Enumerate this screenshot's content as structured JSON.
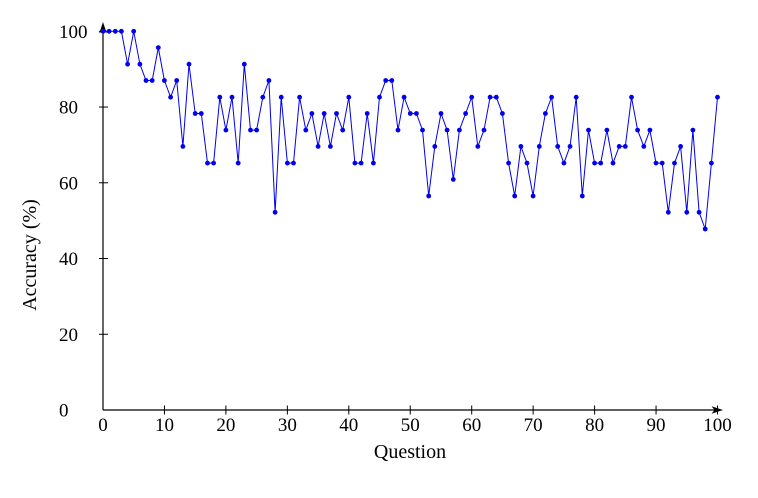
{
  "chart_data": {
    "type": "line",
    "title": "",
    "xlabel": "Question",
    "ylabel": "Accuracy (%)",
    "xlim": [
      0,
      100
    ],
    "ylim": [
      0,
      100
    ],
    "x_ticks": [
      0,
      10,
      20,
      30,
      40,
      50,
      60,
      70,
      80,
      90,
      100
    ],
    "y_ticks": [
      0,
      20,
      40,
      60,
      80,
      100
    ],
    "grid": false,
    "legend": false,
    "series": [
      {
        "name": "accuracy",
        "color": "#0000ee",
        "marker": "filled-circle",
        "x": [
          0,
          1,
          2,
          3,
          4,
          5,
          6,
          7,
          8,
          9,
          10,
          11,
          12,
          13,
          14,
          15,
          16,
          17,
          18,
          19,
          20,
          21,
          22,
          23,
          24,
          25,
          26,
          27,
          28,
          29,
          30,
          31,
          32,
          33,
          34,
          35,
          36,
          37,
          38,
          39,
          40,
          41,
          42,
          43,
          44,
          45,
          46,
          47,
          48,
          49,
          50,
          51,
          52,
          53,
          54,
          55,
          56,
          57,
          58,
          59,
          60,
          61,
          62,
          63,
          64,
          65,
          66,
          67,
          68,
          69,
          70,
          71,
          72,
          73,
          74,
          75,
          76,
          77,
          78,
          79,
          80,
          81,
          82,
          83,
          84,
          85,
          86,
          87,
          88,
          89,
          90,
          91,
          92,
          93,
          94,
          95,
          96,
          97,
          98,
          99,
          100
        ],
        "values": [
          100,
          100,
          100,
          100,
          91.3,
          100,
          91.3,
          87,
          87,
          95.7,
          87,
          82.6,
          87,
          69.6,
          91.3,
          78.3,
          78.3,
          65.2,
          65.2,
          82.6,
          73.9,
          82.6,
          65.2,
          91.3,
          73.9,
          73.9,
          82.6,
          87,
          52.2,
          82.6,
          65.2,
          65.2,
          82.6,
          73.9,
          78.3,
          69.6,
          78.3,
          69.6,
          78.3,
          73.9,
          82.6,
          65.2,
          65.2,
          78.3,
          65.2,
          82.6,
          87,
          87,
          73.9,
          82.6,
          78.3,
          78.3,
          73.9,
          56.5,
          69.6,
          78.3,
          73.9,
          60.9,
          73.9,
          78.3,
          82.6,
          69.6,
          73.9,
          82.6,
          82.6,
          78.3,
          65.2,
          56.5,
          69.6,
          65.2,
          56.5,
          69.6,
          78.3,
          82.6,
          69.6,
          65.2,
          69.6,
          82.6,
          56.5,
          73.9,
          65.2,
          65.2,
          73.9,
          65.2,
          69.6,
          69.6,
          82.6,
          73.9,
          69.6,
          73.9,
          65.2,
          65.2,
          52.2,
          65.2,
          69.6,
          52.2,
          73.9,
          52.2,
          47.8,
          65.2,
          82.6
        ]
      }
    ]
  },
  "colors": {
    "line": "#0000ee",
    "marker": "#0000ee",
    "axis": "#000000",
    "text": "#000000",
    "background": "#ffffff"
  }
}
